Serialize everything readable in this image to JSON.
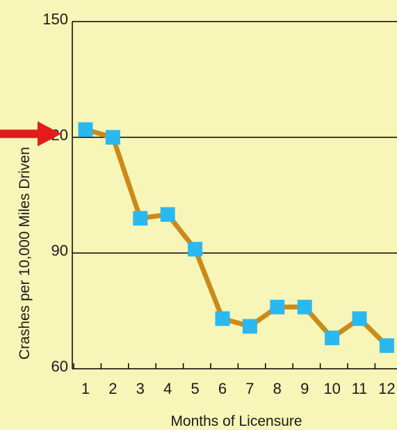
{
  "chart_data": {
    "type": "line",
    "title": "",
    "xlabel": "Months of Licensure",
    "ylabel": "Crashes per 10,000 Miles Driven",
    "x": [
      1,
      2,
      3,
      4,
      5,
      6,
      7,
      8,
      9,
      10,
      11,
      12
    ],
    "x_tick_labels": [
      "1",
      "2",
      "3",
      "4",
      "5",
      "6",
      "7",
      "8",
      "9",
      "10",
      "11",
      "12"
    ],
    "y_ticks": [
      60,
      90,
      120,
      150
    ],
    "y_tick_labels": [
      "60",
      "90",
      "120",
      "150"
    ],
    "ylim": [
      60,
      150
    ],
    "grid": "horizontal",
    "series": [
      {
        "values": [
          122,
          120,
          99,
          100,
          91,
          73,
          71,
          76,
          76,
          68,
          73,
          66
        ]
      }
    ],
    "annotations": [
      {
        "type": "arrow",
        "target_y": 120,
        "color": "#e31b1b"
      }
    ],
    "colors": {
      "background": "#f8f5b8",
      "line": "#cc8a1a",
      "marker": "#2ab8f0",
      "arrow": "#e31b1b",
      "grid": "#000000"
    }
  }
}
